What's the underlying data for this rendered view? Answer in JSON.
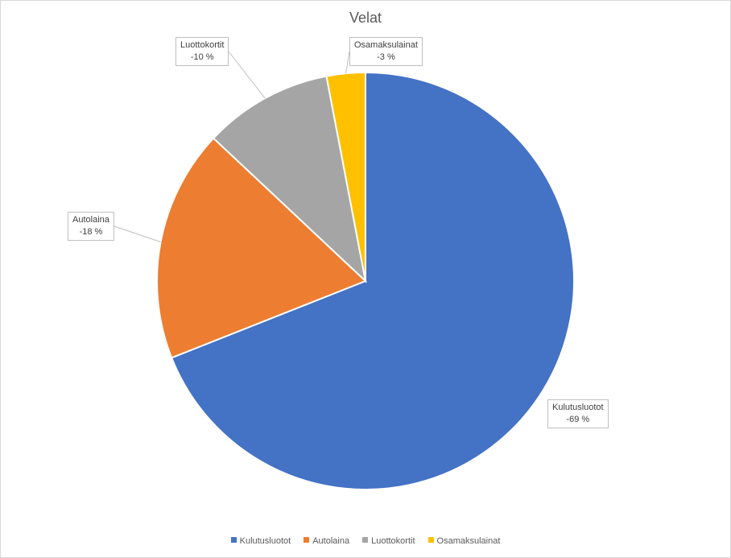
{
  "chart_data": {
    "type": "pie",
    "title": "Velat",
    "categories": [
      "Kulutusluotot",
      "Autolaina",
      "Luottokortit",
      "Osamaksulainat"
    ],
    "values": [
      69,
      18,
      10,
      3
    ],
    "data_labels": [
      "-69 %",
      "-18 %",
      "-10 %",
      "-3 %"
    ],
    "colors": [
      "#4472c4",
      "#ed7d31",
      "#a5a5a5",
      "#ffc000"
    ],
    "legend_position": "bottom",
    "start_angle": "12 o'clock, clockwise"
  }
}
